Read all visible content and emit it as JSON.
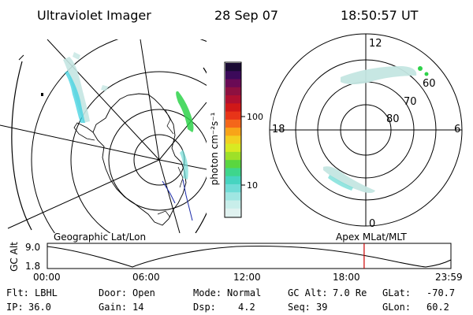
{
  "header": {
    "title": "Ultraviolet Imager",
    "date": "28 Sep 07",
    "time": "18:50:57 UT"
  },
  "left_panel": {
    "caption": "Geographic Lat/Lon"
  },
  "right_panel": {
    "caption": "Apex MLat/MLT",
    "mlt_labels": {
      "top": "12",
      "bottom": "0",
      "left": "18",
      "right": "6"
    },
    "lat_labels": [
      "60",
      "70",
      "80"
    ]
  },
  "colorbar": {
    "label": "photon cm⁻²s⁻¹",
    "ticks": [
      "100",
      "10"
    ],
    "colors": [
      "#1a0a33",
      "#3c0a5a",
      "#6a0a55",
      "#8e1040",
      "#b01030",
      "#d01818",
      "#e83418",
      "#f4661a",
      "#f8a418",
      "#f2d020",
      "#d8ea22",
      "#9ee028",
      "#5ad640",
      "#3ed68c",
      "#46d4c0",
      "#70dcd6",
      "#a0e6e2",
      "#c8eeea",
      "#e0f2f0"
    ]
  },
  "timeline": {
    "axis_label": "GC Alt",
    "y_ticks": [
      "9.0",
      "1.8"
    ],
    "x_ticks": [
      "00:00",
      "06:00",
      "12:00",
      "18:00",
      "23:59"
    ],
    "current_time_fraction": 0.785
  },
  "footer": {
    "rows": [
      [
        {
          "label": "Flt:",
          "value": "LBHL"
        },
        {
          "label": "Door:",
          "value": "Open"
        },
        {
          "label": "Mode:",
          "value": "Normal"
        },
        {
          "label": "GC Alt:",
          "value": "7.0 Re"
        },
        {
          "label": "GLat:",
          "value": "-70.7"
        }
      ],
      [
        {
          "label": "IP:",
          "value": "36.0"
        },
        {
          "label": "Gain:",
          "value": "14"
        },
        {
          "label": "Dsp:",
          "value": "4.2"
        },
        {
          "label": "Seq:",
          "value": "39"
        },
        {
          "label": "GLon:",
          "value": "60.2"
        }
      ]
    ]
  },
  "colors": {
    "aurora_dim": "#c4e6e2",
    "aurora_mid": "#7fd8d6",
    "aurora_cyan": "#3fd2e0",
    "aurora_bright": "#2ed24a",
    "marker": "#cc0000",
    "coast_blue": "#1a2aa8"
  }
}
